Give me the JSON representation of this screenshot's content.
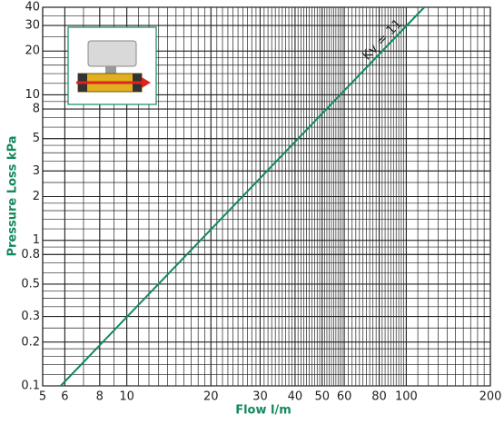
{
  "chart_data": {
    "type": "line",
    "log_x": true,
    "log_y": true,
    "grid": true,
    "x_label": "Flow l/m",
    "y_label": "Pressure Loss kPa",
    "xlim": [
      5,
      200
    ],
    "ylim": [
      0.1,
      40
    ],
    "xticks": [
      5,
      6,
      8,
      10,
      20,
      30,
      40,
      50,
      60,
      80,
      100,
      200
    ],
    "yticks": [
      0.1,
      0.2,
      0.3,
      0.5,
      0.8,
      1,
      2,
      3,
      5,
      8,
      10,
      20,
      30,
      40
    ],
    "x_minor_grid": [
      5,
      6,
      7,
      8,
      9,
      10,
      11,
      12,
      13,
      14,
      15,
      16,
      17,
      18,
      19,
      20,
      21,
      22,
      23,
      24,
      25,
      26,
      27,
      28,
      29,
      30,
      31,
      32,
      33,
      34,
      35,
      36,
      37,
      38,
      39,
      40,
      41,
      42,
      43,
      44,
      45,
      46,
      47,
      48,
      49,
      50,
      51,
      52,
      53,
      54,
      55,
      56,
      57,
      58,
      59,
      60,
      62,
      64,
      66,
      68,
      70,
      72,
      74,
      76,
      78,
      80,
      82,
      84,
      86,
      88,
      90,
      92,
      94,
      96,
      98,
      100,
      110,
      120,
      130,
      140,
      150,
      160,
      170,
      180,
      190,
      200
    ],
    "y_minor_grid": [
      0.1,
      0.12,
      0.14,
      0.16,
      0.18,
      0.2,
      0.25,
      0.3,
      0.35,
      0.4,
      0.45,
      0.5,
      0.6,
      0.7,
      0.8,
      0.9,
      1,
      1.2,
      1.4,
      1.6,
      1.8,
      2,
      2.5,
      3,
      3.5,
      4,
      4.5,
      5,
      6,
      7,
      8,
      9,
      10,
      12,
      14,
      16,
      18,
      20,
      25,
      30,
      35,
      40
    ],
    "series": [
      {
        "name": "Kv = 11",
        "color": "#12895c",
        "x": [
          5.8,
          116
        ],
        "values": [
          0.1,
          40
        ]
      }
    ]
  }
}
